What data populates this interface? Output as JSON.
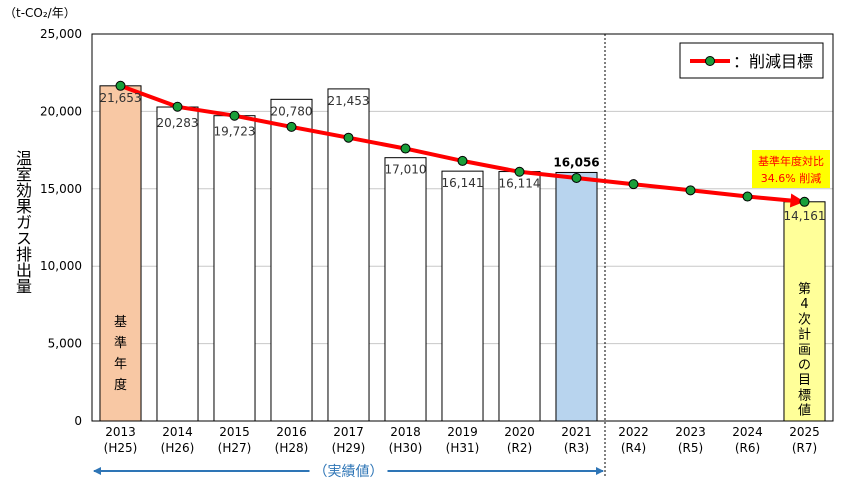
{
  "unit_label": "（t-CO₂/年）",
  "chart_data": {
    "type": "bar",
    "title": "",
    "ylabel": "温室効果ガス排出量",
    "ylim": [
      0,
      25000
    ],
    "yticks": [
      0,
      5000,
      10000,
      15000,
      20000,
      25000
    ],
    "ytick_labels": [
      "0",
      "5,000",
      "10,000",
      "15,000",
      "20,000",
      "25,000"
    ],
    "grid": true,
    "legend_position": "top-right",
    "categories": [
      "2013",
      "2014",
      "2015",
      "2016",
      "2017",
      "2018",
      "2019",
      "2020",
      "2021",
      "2022",
      "2023",
      "2024",
      "2025"
    ],
    "category_sublabels": [
      "(H25)",
      "(H26)",
      "(H27)",
      "(H28)",
      "(H29)",
      "(H30)",
      "(H31)",
      "(R2)",
      "(R3)",
      "(R4)",
      "(R5)",
      "(R6)",
      "(R7)"
    ],
    "bars": {
      "values": [
        21653,
        20283,
        19723,
        20780,
        21453,
        17010,
        16141,
        16114,
        16056,
        null,
        null,
        null,
        14161
      ],
      "value_labels": [
        "21,653",
        "20,283",
        "19,723",
        "20,780",
        "21,453",
        "17,010",
        "16,141",
        "16,114",
        "16,056",
        "",
        "",
        "",
        "14,161"
      ],
      "colors": [
        "#f8c8a4",
        "#ffffff",
        "#ffffff",
        "#ffffff",
        "#ffffff",
        "#ffffff",
        "#ffffff",
        "#ffffff",
        "#b8d4ee",
        "#ffffff",
        "#ffffff",
        "#ffffff",
        "#ffff99"
      ]
    },
    "series": [
      {
        "name": "：削減目標",
        "type": "line",
        "color": "#ff0000",
        "marker_color": "#1a9e3a",
        "values": [
          21653,
          20300,
          19720,
          19000,
          18300,
          17600,
          16800,
          16100,
          15700,
          15300,
          14900,
          14500,
          14161
        ]
      }
    ],
    "annotations": {
      "base_year_label": "基準年度",
      "target_label": "第4次計画の目標値",
      "reduction_line1": "基準年度対比",
      "reduction_line2": "34.6% 削減",
      "actual_range_label": "（実績値）"
    },
    "colors": {
      "line": "#ff0000",
      "marker": "#1a9e3a",
      "base_bar": "#f8c8a4",
      "latest_bar": "#b8d4ee",
      "target_bar": "#ffff99",
      "callout_bg": "#ffff00",
      "callout_text": "#ff0000",
      "range_arrow": "#2e75b6"
    }
  }
}
